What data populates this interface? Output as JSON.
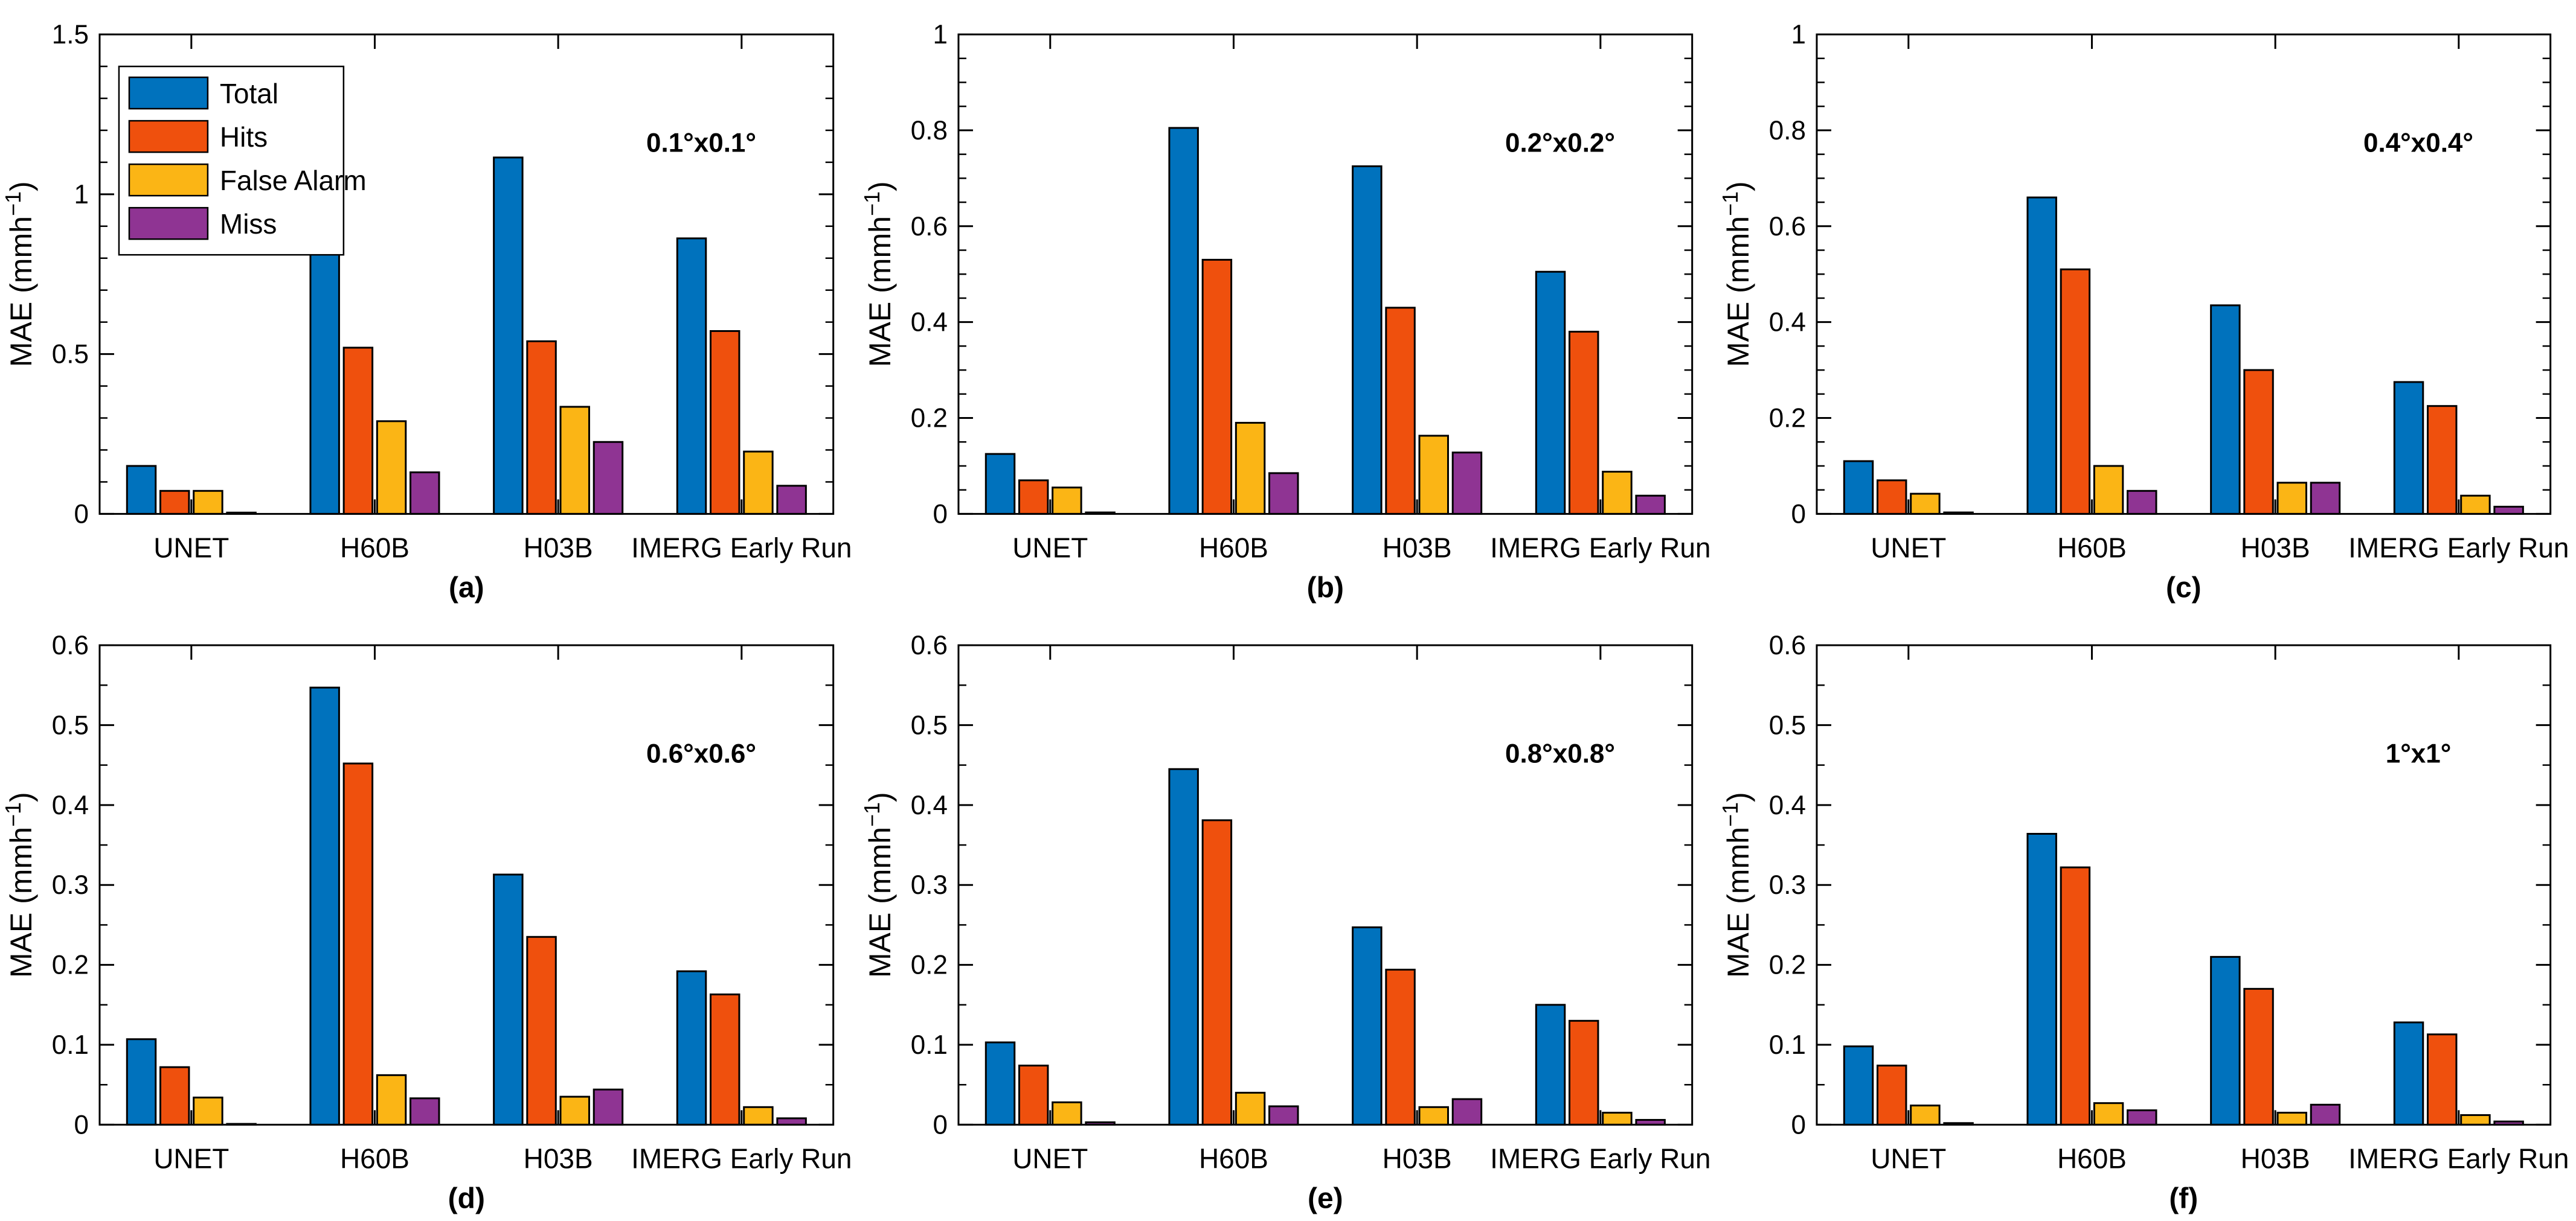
{
  "figure": {
    "background": "#ffffff",
    "axis_color": "#000000",
    "text_color": "#000000",
    "ylabel": "MAE (mmh⁻¹)",
    "ylabel_parts": {
      "prefix": "MAE (mmh",
      "superscript": "−1",
      "suffix": ")"
    }
  },
  "legend": {
    "position": "top-left-panel-a",
    "items": [
      {
        "label": "Total",
        "color": "#0072BD"
      },
      {
        "label": "Hits",
        "color": "#EF500D"
      },
      {
        "label": "False Alarm",
        "color": "#FBB515"
      },
      {
        "label": "Miss",
        "color": "#8F3493"
      }
    ]
  },
  "chart_data": [
    {
      "type": "bar",
      "panel_label": "(a)",
      "annotation": "0.1°x0.1°",
      "ylabel": "MAE (mmh⁻¹)",
      "xlabel": "",
      "ylim": [
        0,
        1.5
      ],
      "ytick_step": 0.5,
      "yminor_step": 0.1,
      "grid": false,
      "legend_visible": true,
      "categories": [
        "UNET",
        "H60B",
        "H03B",
        "IMERG Early Run"
      ],
      "series": [
        {
          "name": "Total",
          "color": "#0072BD",
          "values": [
            0.15,
            0.943,
            1.115,
            0.862
          ]
        },
        {
          "name": "Hits",
          "color": "#EF500D",
          "values": [
            0.072,
            0.52,
            0.54,
            0.572
          ]
        },
        {
          "name": "False Alarm",
          "color": "#FBB515",
          "values": [
            0.072,
            0.29,
            0.335,
            0.195
          ]
        },
        {
          "name": "Miss",
          "color": "#8F3493",
          "values": [
            0.004,
            0.13,
            0.225,
            0.088
          ]
        }
      ]
    },
    {
      "type": "bar",
      "panel_label": "(b)",
      "annotation": "0.2°x0.2°",
      "ylabel": "MAE (mmh⁻¹)",
      "xlabel": "",
      "ylim": [
        0,
        1
      ],
      "ytick_step": 0.2,
      "yminor_step": 0.05,
      "grid": false,
      "legend_visible": false,
      "categories": [
        "UNET",
        "H60B",
        "H03B",
        "IMERG Early Run"
      ],
      "series": [
        {
          "name": "Total",
          "color": "#0072BD",
          "values": [
            0.125,
            0.805,
            0.725,
            0.505
          ]
        },
        {
          "name": "Hits",
          "color": "#EF500D",
          "values": [
            0.07,
            0.53,
            0.43,
            0.38
          ]
        },
        {
          "name": "False Alarm",
          "color": "#FBB515",
          "values": [
            0.055,
            0.19,
            0.163,
            0.088
          ]
        },
        {
          "name": "Miss",
          "color": "#8F3493",
          "values": [
            0.003,
            0.085,
            0.128,
            0.038
          ]
        }
      ]
    },
    {
      "type": "bar",
      "panel_label": "(c)",
      "annotation": "0.4°x0.4°",
      "ylabel": "MAE (mmh⁻¹)",
      "xlabel": "",
      "ylim": [
        0,
        1
      ],
      "ytick_step": 0.2,
      "yminor_step": 0.05,
      "grid": false,
      "legend_visible": false,
      "categories": [
        "UNET",
        "H60B",
        "H03B",
        "IMERG Early Run"
      ],
      "series": [
        {
          "name": "Total",
          "color": "#0072BD",
          "values": [
            0.11,
            0.66,
            0.435,
            0.275
          ]
        },
        {
          "name": "Hits",
          "color": "#EF500D",
          "values": [
            0.07,
            0.51,
            0.3,
            0.225
          ]
        },
        {
          "name": "False Alarm",
          "color": "#FBB515",
          "values": [
            0.042,
            0.1,
            0.065,
            0.038
          ]
        },
        {
          "name": "Miss",
          "color": "#8F3493",
          "values": [
            0.003,
            0.048,
            0.065,
            0.015
          ]
        }
      ]
    },
    {
      "type": "bar",
      "panel_label": "(d)",
      "annotation": "0.6°x0.6°",
      "ylabel": "MAE (mmh⁻¹)",
      "xlabel": "",
      "ylim": [
        0,
        0.6
      ],
      "ytick_step": 0.1,
      "yminor_step": 0.05,
      "grid": false,
      "legend_visible": false,
      "categories": [
        "UNET",
        "H60B",
        "H03B",
        "IMERG Early Run"
      ],
      "series": [
        {
          "name": "Total",
          "color": "#0072BD",
          "values": [
            0.107,
            0.547,
            0.313,
            0.192
          ]
        },
        {
          "name": "Hits",
          "color": "#EF500D",
          "values": [
            0.072,
            0.452,
            0.235,
            0.163
          ]
        },
        {
          "name": "False Alarm",
          "color": "#FBB515",
          "values": [
            0.034,
            0.062,
            0.035,
            0.022
          ]
        },
        {
          "name": "Miss",
          "color": "#8F3493",
          "values": [
            0.001,
            0.033,
            0.044,
            0.008
          ]
        }
      ]
    },
    {
      "type": "bar",
      "panel_label": "(e)",
      "annotation": "0.8°x0.8°",
      "ylabel": "MAE (mmh⁻¹)",
      "xlabel": "",
      "ylim": [
        0,
        0.6
      ],
      "ytick_step": 0.1,
      "yminor_step": 0.05,
      "grid": false,
      "legend_visible": false,
      "categories": [
        "UNET",
        "H60B",
        "H03B",
        "IMERG Early Run"
      ],
      "series": [
        {
          "name": "Total",
          "color": "#0072BD",
          "values": [
            0.103,
            0.445,
            0.247,
            0.15
          ]
        },
        {
          "name": "Hits",
          "color": "#EF500D",
          "values": [
            0.074,
            0.381,
            0.194,
            0.13
          ]
        },
        {
          "name": "False Alarm",
          "color": "#FBB515",
          "values": [
            0.028,
            0.04,
            0.022,
            0.015
          ]
        },
        {
          "name": "Miss",
          "color": "#8F3493",
          "values": [
            0.003,
            0.023,
            0.032,
            0.006
          ]
        }
      ]
    },
    {
      "type": "bar",
      "panel_label": "(f)",
      "annotation": "1°x1°",
      "ylabel": "MAE (mmh⁻¹)",
      "xlabel": "",
      "ylim": [
        0,
        0.6
      ],
      "ytick_step": 0.1,
      "yminor_step": 0.05,
      "grid": false,
      "legend_visible": false,
      "categories": [
        "UNET",
        "H60B",
        "H03B",
        "IMERG Early Run"
      ],
      "series": [
        {
          "name": "Total",
          "color": "#0072BD",
          "values": [
            0.098,
            0.364,
            0.21,
            0.128
          ]
        },
        {
          "name": "Hits",
          "color": "#EF500D",
          "values": [
            0.074,
            0.322,
            0.17,
            0.113
          ]
        },
        {
          "name": "False Alarm",
          "color": "#FBB515",
          "values": [
            0.024,
            0.027,
            0.015,
            0.012
          ]
        },
        {
          "name": "Miss",
          "color": "#8F3493",
          "values": [
            0.002,
            0.018,
            0.025,
            0.004
          ]
        }
      ]
    }
  ]
}
